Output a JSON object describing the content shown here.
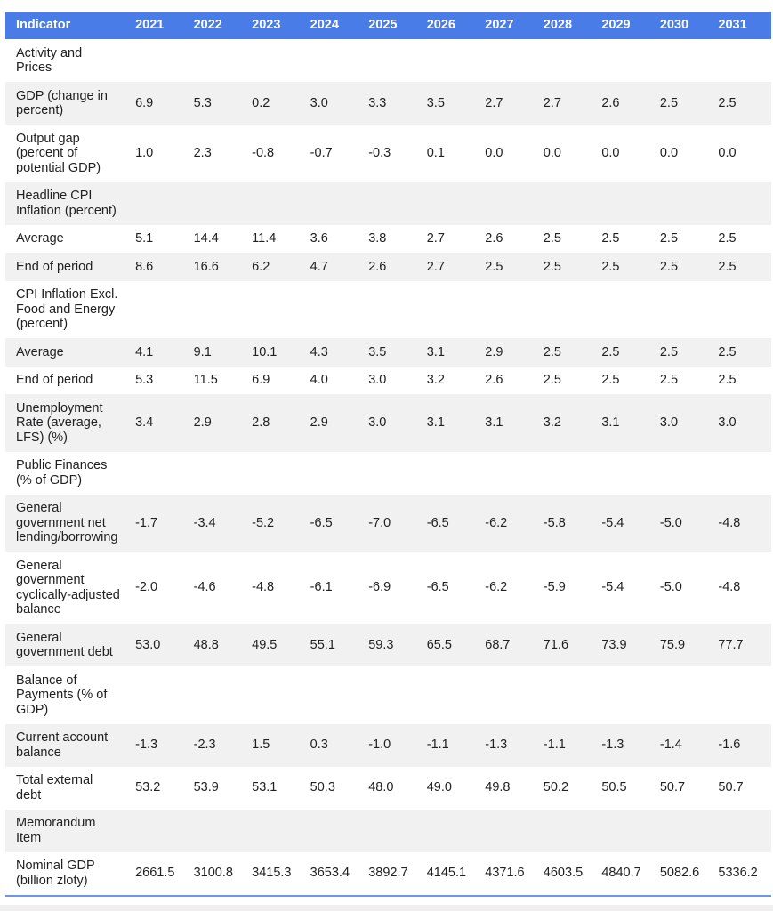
{
  "colors": {
    "header_bg": "#4a7ce8",
    "header_text": "#ffffff",
    "stripe_bg": "#f1f1f1",
    "text": "#202122",
    "bottom_rule": "#6f96e6",
    "bottom_strip_bg": "#efefef"
  },
  "table": {
    "columns": [
      "Indicator",
      "2021",
      "2022",
      "2023",
      "2024",
      "2025",
      "2026",
      "2027",
      "2028",
      "2029",
      "2030",
      "2031"
    ],
    "rows": [
      {
        "type": "section",
        "label": "Activity and Prices"
      },
      {
        "type": "data",
        "label": "GDP (change in percent)",
        "values": [
          "6.9",
          "5.3",
          "0.2",
          "3.0",
          "3.3",
          "3.5",
          "2.7",
          "2.7",
          "2.6",
          "2.5",
          "2.5"
        ]
      },
      {
        "type": "data",
        "label": "Output gap (percent of potential GDP)",
        "values": [
          "1.0",
          "2.3",
          "-0.8",
          "-0.7",
          "-0.3",
          "0.1",
          "0.0",
          "0.0",
          "0.0",
          "0.0",
          "0.0"
        ]
      },
      {
        "type": "section",
        "label": "Headline CPI Inflation (percent)"
      },
      {
        "type": "data",
        "label": "Average",
        "values": [
          "5.1",
          "14.4",
          "11.4",
          "3.6",
          "3.8",
          "2.7",
          "2.6",
          "2.5",
          "2.5",
          "2.5",
          "2.5"
        ]
      },
      {
        "type": "data",
        "label": "End of period",
        "values": [
          "8.6",
          "16.6",
          "6.2",
          "4.7",
          "2.6",
          "2.7",
          "2.5",
          "2.5",
          "2.5",
          "2.5",
          "2.5"
        ]
      },
      {
        "type": "section",
        "label": "CPI Inflation Excl. Food and Energy (percent)"
      },
      {
        "type": "data",
        "label": "Average",
        "values": [
          "4.1",
          "9.1",
          "10.1",
          "4.3",
          "3.5",
          "3.1",
          "2.9",
          "2.5",
          "2.5",
          "2.5",
          "2.5"
        ]
      },
      {
        "type": "data",
        "label": "End of period",
        "values": [
          "5.3",
          "11.5",
          "6.9",
          "4.0",
          "3.0",
          "3.2",
          "2.6",
          "2.5",
          "2.5",
          "2.5",
          "2.5"
        ]
      },
      {
        "type": "data",
        "label": "Unemployment Rate (average, LFS) (%)",
        "values": [
          "3.4",
          "2.9",
          "2.8",
          "2.9",
          "3.0",
          "3.1",
          "3.1",
          "3.2",
          "3.1",
          "3.0",
          "3.0"
        ]
      },
      {
        "type": "section",
        "label": "Public Finances (% of GDP)"
      },
      {
        "type": "data",
        "label": "General government net lending/borrowing",
        "values": [
          "-1.7",
          "-3.4",
          "-5.2",
          "-6.5",
          "-7.0",
          "-6.5",
          "-6.2",
          "-5.8",
          "-5.4",
          "-5.0",
          "-4.8"
        ]
      },
      {
        "type": "data",
        "label": "General government cyclically-adjusted balance",
        "values": [
          "-2.0",
          "-4.6",
          "-4.8",
          "-6.1",
          "-6.9",
          "-6.5",
          "-6.2",
          "-5.9",
          "-5.4",
          "-5.0",
          "-4.8"
        ]
      },
      {
        "type": "data",
        "label": "General government debt",
        "values": [
          "53.0",
          "48.8",
          "49.5",
          "55.1",
          "59.3",
          "65.5",
          "68.7",
          "71.6",
          "73.9",
          "75.9",
          "77.7"
        ]
      },
      {
        "type": "section",
        "label": "Balance of Payments (% of GDP)"
      },
      {
        "type": "data",
        "label": "Current account balance",
        "values": [
          "-1.3",
          "-2.3",
          "1.5",
          "0.3",
          "-1.0",
          "-1.1",
          "-1.3",
          "-1.1",
          "-1.3",
          "-1.4",
          "-1.6"
        ]
      },
      {
        "type": "data",
        "label": "Total external debt",
        "values": [
          "53.2",
          "53.9",
          "53.1",
          "50.3",
          "48.0",
          "49.0",
          "49.8",
          "50.2",
          "50.5",
          "50.7",
          "50.7"
        ]
      },
      {
        "type": "section",
        "label": "Memorandum Item"
      },
      {
        "type": "data",
        "label": "Nominal GDP (billion zloty)",
        "values": [
          "2661.5",
          "3100.8",
          "3415.3",
          "3653.4",
          "3892.7",
          "4145.1",
          "4371.6",
          "4603.5",
          "4840.7",
          "5082.6",
          "5336.2"
        ]
      }
    ]
  }
}
